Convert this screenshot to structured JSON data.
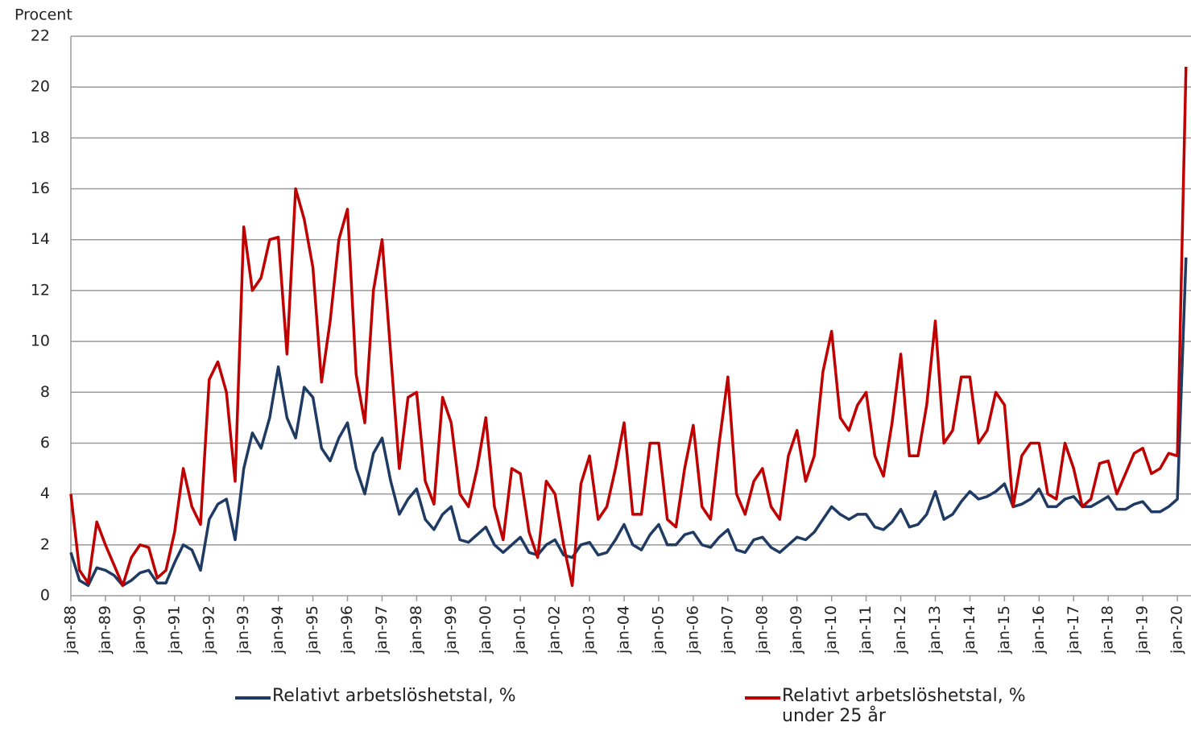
{
  "chart_data": {
    "type": "line",
    "y_label": "Procent",
    "categories": [
      "jan-88",
      null,
      null,
      null,
      "jan-89",
      null,
      null,
      null,
      "jan-90",
      null,
      null,
      null,
      "jan-91",
      null,
      null,
      null,
      "jan-92",
      null,
      null,
      null,
      "jan-93",
      null,
      null,
      null,
      "jan-94",
      null,
      null,
      null,
      "jan-95",
      null,
      null,
      null,
      "jan-96",
      null,
      null,
      null,
      "jan-97",
      null,
      null,
      null,
      "jan-98",
      null,
      null,
      null,
      "jan-99",
      null,
      null,
      null,
      "jan-00",
      null,
      null,
      null,
      "jan-01",
      null,
      null,
      null,
      "jan-02",
      null,
      null,
      null,
      "jan-03",
      null,
      null,
      null,
      "jan-04",
      null,
      null,
      null,
      "jan-05",
      null,
      null,
      null,
      "jan-06",
      null,
      null,
      null,
      "jan-07",
      null,
      null,
      null,
      "jan-08",
      null,
      null,
      null,
      "jan-09",
      null,
      null,
      null,
      "jan-10",
      null,
      null,
      null,
      "jan-11",
      null,
      null,
      null,
      "jan-12",
      null,
      null,
      null,
      "jan-13",
      null,
      null,
      null,
      "jan-14",
      null,
      null,
      null,
      "jan-15",
      null,
      null,
      null,
      "jan-16",
      null,
      null,
      null,
      "jan-17",
      null,
      null,
      null,
      "jan-18",
      null,
      null,
      null,
      "jan-19",
      null,
      null,
      null,
      "jan-20",
      null
    ],
    "series": [
      {
        "name": "Relativt arbetslöshetstal, %",
        "color": "#1f3b63",
        "values": [
          1.7,
          0.6,
          0.4,
          1.1,
          1.0,
          0.8,
          0.4,
          0.6,
          0.9,
          1.0,
          0.5,
          0.5,
          1.3,
          2.0,
          1.8,
          1.0,
          3.0,
          3.6,
          3.8,
          2.2,
          5.0,
          6.4,
          5.8,
          7.0,
          9.0,
          7.0,
          6.2,
          8.2,
          7.8,
          5.8,
          5.3,
          6.2,
          6.8,
          5.0,
          4.0,
          5.6,
          6.2,
          4.5,
          3.2,
          3.8,
          4.2,
          3.0,
          2.6,
          3.2,
          3.5,
          2.2,
          2.1,
          2.4,
          2.7,
          2.0,
          1.7,
          2.0,
          2.3,
          1.7,
          1.6,
          2.0,
          2.2,
          1.6,
          1.5,
          2.0,
          2.1,
          1.6,
          1.7,
          2.2,
          2.8,
          2.0,
          1.8,
          2.4,
          2.8,
          2.0,
          2.0,
          2.4,
          2.5,
          2.0,
          1.9,
          2.3,
          2.6,
          1.8,
          1.7,
          2.2,
          2.3,
          1.9,
          1.7,
          2.0,
          2.3,
          2.2,
          2.5,
          3.0,
          3.5,
          3.2,
          3.0,
          3.2,
          3.2,
          2.7,
          2.6,
          2.9,
          3.4,
          2.7,
          2.8,
          3.2,
          4.1,
          3.0,
          3.2,
          3.7,
          4.1,
          3.8,
          3.9,
          4.1,
          4.4,
          3.5,
          3.6,
          3.8,
          4.2,
          3.5,
          3.5,
          3.8,
          3.9,
          3.5,
          3.5,
          3.7,
          3.9,
          3.4,
          3.4,
          3.6,
          3.7,
          3.3,
          3.3,
          3.5,
          3.8,
          13.3
        ]
      },
      {
        "name": "Relativt arbetslöshetstal, % under 25 år",
        "color": "#c00000",
        "values": [
          4.0,
          1.0,
          0.5,
          2.9,
          2.0,
          1.2,
          0.4,
          1.5,
          2.0,
          1.9,
          0.7,
          1.0,
          2.5,
          5.0,
          3.5,
          2.8,
          8.5,
          9.2,
          8.0,
          4.5,
          14.5,
          12.0,
          12.5,
          14.0,
          14.1,
          9.5,
          16.0,
          14.8,
          12.9,
          8.4,
          10.8,
          14.0,
          15.2,
          8.7,
          6.8,
          12.0,
          14.0,
          9.5,
          5.0,
          7.8,
          8.0,
          4.5,
          3.6,
          7.8,
          6.8,
          4.0,
          3.5,
          5.0,
          7.0,
          3.5,
          2.2,
          5.0,
          4.8,
          2.5,
          1.5,
          4.5,
          4.0,
          2.0,
          0.4,
          4.4,
          5.5,
          3.0,
          3.5,
          5.0,
          6.8,
          3.2,
          3.2,
          6.0,
          6.0,
          3.0,
          2.7,
          5.0,
          6.7,
          3.5,
          3.0,
          6.0,
          8.6,
          4.0,
          3.2,
          4.5,
          5.0,
          3.5,
          3.0,
          5.5,
          6.5,
          4.5,
          5.5,
          8.8,
          10.4,
          7.0,
          6.5,
          7.5,
          8.0,
          5.5,
          4.7,
          6.8,
          9.5,
          5.5,
          5.5,
          7.5,
          10.8,
          6.0,
          6.5,
          8.6,
          8.6,
          6.0,
          6.5,
          8.0,
          7.5,
          3.5,
          5.5,
          6.0,
          6.0,
          4.0,
          3.8,
          6.0,
          5.0,
          3.5,
          3.8,
          5.2,
          5.3,
          4.0,
          4.8,
          5.6,
          5.8,
          4.8,
          5.0,
          5.6,
          5.5,
          20.8
        ]
      }
    ],
    "ylim": [
      0,
      22
    ],
    "yticks": [
      0,
      2,
      4,
      6,
      8,
      10,
      12,
      14,
      16,
      18,
      20,
      22
    ],
    "grid": true
  }
}
